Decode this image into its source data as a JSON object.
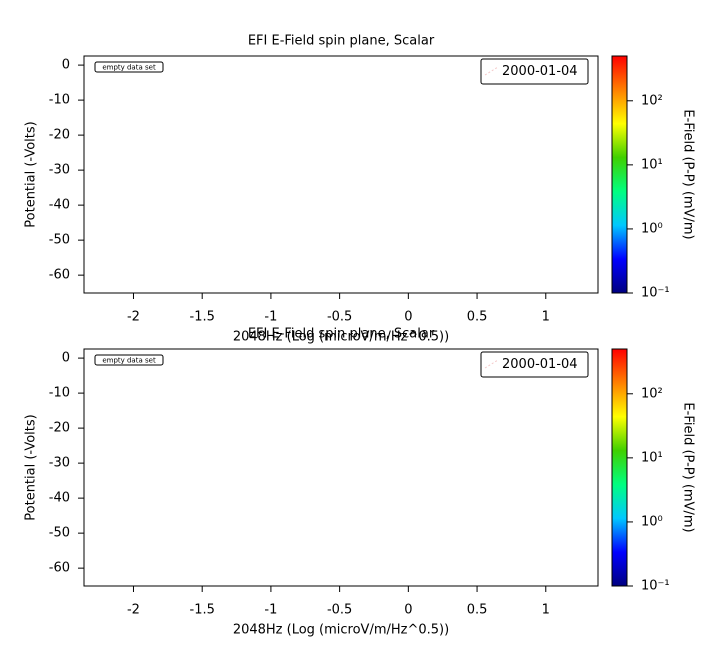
{
  "chart_data": [
    {
      "type": "line",
      "title": "EFI  E-Field spin plane, Scalar",
      "xlabel": "2048Hz (Log (microV/m/Hz^0.5))",
      "ylabel": "Potential (-Volts)",
      "annotation": "empty data set",
      "x": [],
      "series": [
        {
          "name": "2000-01-04",
          "color": "#f4c8c8",
          "values": []
        }
      ],
      "xlim": [
        -2.36,
        1.38
      ],
      "xticks": [
        -2.0,
        -1.5,
        -1.0,
        -0.5,
        0.0,
        0.5,
        1.0
      ],
      "ylim": [
        -65.1,
        2.6
      ],
      "yticks": [
        0,
        -10,
        -20,
        -30,
        -40,
        -50,
        -60
      ],
      "legend": "upper right",
      "colorbar": {
        "label": "E-Field (P-P) (mV/m)",
        "zlim": [
          0.1,
          500
        ],
        "log": true,
        "zticks": [
          {
            "value": 0.1,
            "label": "10⁻¹"
          },
          {
            "value": 1,
            "label": "10⁰"
          },
          {
            "value": 10,
            "label": "10¹"
          },
          {
            "value": 100,
            "label": "10²"
          }
        ],
        "colormap": [
          "#000080",
          "#0000ff",
          "#00c8ff",
          "#00ff80",
          "#40d000",
          "#ffff00",
          "#ff8000",
          "#ff0000"
        ]
      }
    },
    {
      "type": "line",
      "title": "EFI  E-Field spin plane, Scalar",
      "xlabel": "2048Hz (Log (microV/m/Hz^0.5))",
      "ylabel": "Potential (-Volts)",
      "annotation": "empty data set",
      "x": [],
      "series": [
        {
          "name": "2000-01-04",
          "color": "#f4c8c8",
          "values": []
        }
      ],
      "xlim": [
        -2.36,
        1.38
      ],
      "xticks": [
        -2.0,
        -1.5,
        -1.0,
        -0.5,
        0.0,
        0.5,
        1.0
      ],
      "ylim": [
        -65.1,
        2.6
      ],
      "yticks": [
        0,
        -10,
        -20,
        -30,
        -40,
        -50,
        -60
      ],
      "legend": "upper right",
      "colorbar": {
        "label": "E-Field (P-P) (mV/m)",
        "zlim": [
          0.1,
          500
        ],
        "log": true,
        "zticks": [
          {
            "value": 0.1,
            "label": "10⁻¹"
          },
          {
            "value": 1,
            "label": "10⁰"
          },
          {
            "value": 10,
            "label": "10¹"
          },
          {
            "value": 100,
            "label": "10²"
          }
        ],
        "colormap": [
          "#000080",
          "#0000ff",
          "#00c8ff",
          "#00ff80",
          "#40d000",
          "#ffff00",
          "#ff8000",
          "#ff0000"
        ]
      }
    }
  ]
}
